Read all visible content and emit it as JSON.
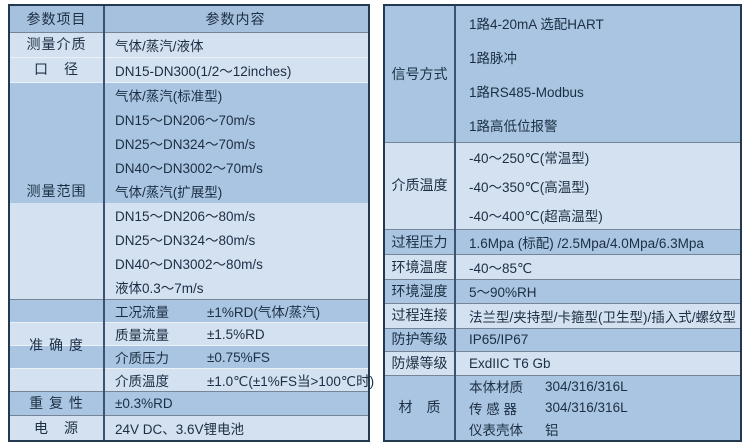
{
  "colors": {
    "band_light": "#d3e1f0",
    "band_medium": "#a9c5e1",
    "band_header": "#a6c1dd",
    "outer_border": "#233950",
    "column_divider": "#3d5170",
    "separator_dark": "#74859a",
    "separator_white": "#eaf1f9",
    "text": "#1c2e44"
  },
  "left_table": {
    "header": {
      "col1": "参数项目",
      "col2": "参数内容"
    },
    "groups": [
      {
        "label": "测量介质",
        "rows": [
          {
            "text": "气体/蒸汽/液体",
            "band": "light",
            "sep": "dark"
          }
        ]
      },
      {
        "label": "口　径",
        "rows": [
          {
            "text": "DN15-DN300(1/2～12inches)",
            "band": "light",
            "sep": "white"
          }
        ]
      },
      {
        "label": "测量范围",
        "rows": [
          {
            "text": "气体/蒸汽(标准型)",
            "band": "medium",
            "sep": "white"
          },
          {
            "k": "DN15～DN20",
            "v": "6～70m/s",
            "band": "medium"
          },
          {
            "k": "DN25～DN32",
            "v": "4～70m/s",
            "band": "medium"
          },
          {
            "k": "DN40～DN300",
            "v": "2～70m/s",
            "band": "medium"
          },
          {
            "text": "气体/蒸汽(扩展型)",
            "band": "medium"
          },
          {
            "k": "DN15～DN20",
            "v": "6～80m/s",
            "band": "light"
          },
          {
            "k": "DN25～DN32",
            "v": "4～80m/s",
            "band": "light"
          },
          {
            "k": "DN40～DN300",
            "v": "2～80m/s",
            "band": "light"
          },
          {
            "k": "液体",
            "v": "0.3～7m/s",
            "band": "light"
          }
        ]
      },
      {
        "label": "准 确 度",
        "rows": [
          {
            "k": "工况流量",
            "v": "±1%RD(气体/蒸汽)",
            "band": "medium",
            "sep": "dark"
          },
          {
            "k": "质量流量",
            "v": "±1.5%RD",
            "band": "light",
            "sep": "white"
          },
          {
            "k": "介质压力",
            "v": "±0.75%FS",
            "band": "medium",
            "sep": "white"
          },
          {
            "k": "介质温度",
            "v": "±1.0℃(±1%FS当>100℃时)",
            "band": "light",
            "sep": "white"
          }
        ]
      },
      {
        "label": "重 复 性",
        "rows": [
          {
            "text": "±0.3%RD",
            "band": "medium",
            "sep": "dark"
          }
        ]
      },
      {
        "label": "电　源",
        "rows": [
          {
            "text": "24V DC、3.6V锂电池",
            "band": "light",
            "sep": "dark"
          }
        ]
      }
    ]
  },
  "right_table": {
    "groups": [
      {
        "label": "信号方式",
        "rows": [
          {
            "text": "1路4-20mA 选配HART",
            "band": "medium"
          },
          {
            "text": "1路脉冲",
            "band": "medium"
          },
          {
            "text": "1路RS485-Modbus",
            "band": "medium"
          },
          {
            "text": "1路高低位报警",
            "band": "medium"
          }
        ]
      },
      {
        "label": "介质温度",
        "rows": [
          {
            "text": "-40～250℃(常温型)",
            "band": "light",
            "sep": "dark"
          },
          {
            "text": "-40～350℃(高温型)",
            "band": "light"
          },
          {
            "text": "-40～400℃(超高温型)",
            "band": "light"
          }
        ]
      },
      {
        "label": "过程压力",
        "rows": [
          {
            "text": "1.6Mpa (标配) /2.5Mpa/4.0Mpa/6.3Mpa",
            "band": "medium",
            "sep": "dark"
          }
        ]
      },
      {
        "label": "环境温度",
        "rows": [
          {
            "text": "-40～85℃",
            "band": "light",
            "sep": "dark"
          }
        ]
      },
      {
        "label": "环境湿度",
        "rows": [
          {
            "text": "5～90%RH",
            "band": "medium",
            "sep": "dark"
          }
        ]
      },
      {
        "label": "过程连接",
        "rows": [
          {
            "text": "法兰型/夹持型/卡箍型(卫生型)/插入式/螺纹型",
            "band": "light",
            "sep": "dark"
          }
        ]
      },
      {
        "label": "防护等级",
        "rows": [
          {
            "text": "IP65/IP67",
            "band": "medium",
            "sep": "dark"
          }
        ]
      },
      {
        "label": "防爆等级",
        "rows": [
          {
            "text": "ExdIIC T6 Gb",
            "band": "light",
            "sep": "dark"
          }
        ]
      },
      {
        "label": "材　质",
        "rows": [
          {
            "k": "本体材质",
            "v": "304/316/316L",
            "band": "medium",
            "sep": "dark"
          },
          {
            "k": "传 感 器",
            "v": "304/316/316L",
            "band": "medium"
          },
          {
            "k": "仪表壳体",
            "v": "铝",
            "band": "medium"
          }
        ]
      }
    ]
  }
}
